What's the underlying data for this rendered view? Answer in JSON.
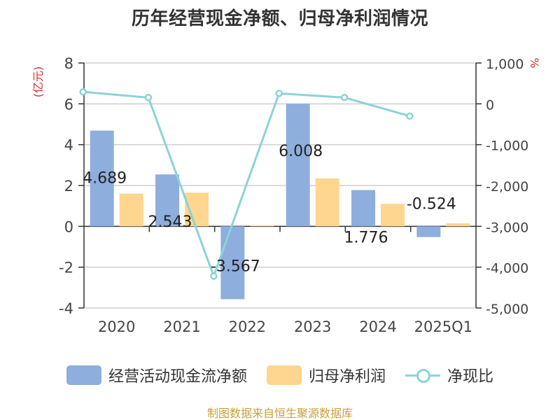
{
  "chart_data": {
    "type": "bar",
    "title": "历年经营现金净额、归母净利润情况",
    "categories": [
      "2020",
      "2021",
      "2022",
      "2023",
      "2024",
      "2025Q1"
    ],
    "left_axis": {
      "label": "(亿元)",
      "ticks": [
        "8",
        "6",
        "4",
        "2",
        "0",
        "-2",
        "-4"
      ],
      "range": [
        -4,
        8
      ]
    },
    "right_axis": {
      "label": "%",
      "ticks": [
        "1,000",
        "0",
        "-1,000",
        "-2,000",
        "-3,000",
        "-4,000",
        "-5,000"
      ],
      "range": [
        -5000,
        1000
      ]
    },
    "series": [
      {
        "name": "经营活动现金流净额",
        "type": "bar",
        "axis": "left",
        "values": [
          4.689,
          2.543,
          -3.567,
          6.008,
          1.776,
          -0.524
        ],
        "labels": [
          "4.689",
          "2.543",
          "-3.567",
          "6.008",
          "1.776",
          "-0.524"
        ],
        "color": "#8eaedd"
      },
      {
        "name": "归母净利润",
        "type": "bar",
        "axis": "left",
        "values": [
          1.6,
          1.65,
          0.05,
          2.35,
          1.1,
          0.15
        ],
        "color": "#ffd68f"
      },
      {
        "name": "净现比",
        "type": "line",
        "axis": "right",
        "values": [
          293,
          154,
          -4220,
          256,
          154,
          -300
        ],
        "color": "#8bd3d8"
      }
    ],
    "grid": true,
    "legend": "bottom"
  },
  "source_text": "制图数据来自恒生聚源数据库"
}
